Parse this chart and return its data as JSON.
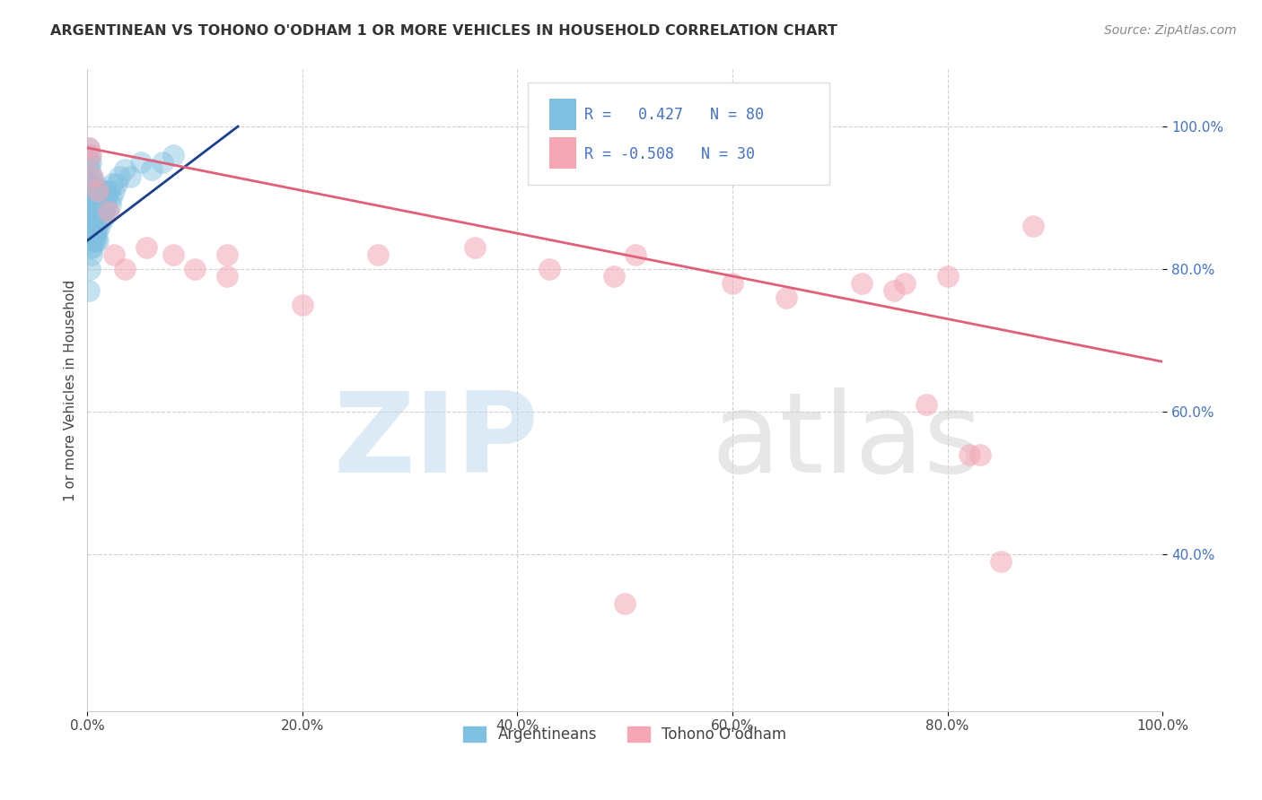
{
  "title": "ARGENTINEAN VS TOHONO O'ODHAM 1 OR MORE VEHICLES IN HOUSEHOLD CORRELATION CHART",
  "source": "Source: ZipAtlas.com",
  "ylabel": "1 or more Vehicles in Household",
  "xlim": [
    0.0,
    1.0
  ],
  "ylim": [
    0.18,
    1.08
  ],
  "yticks": [
    0.4,
    0.6,
    0.8,
    1.0
  ],
  "ytick_labels": [
    "40.0%",
    "60.0%",
    "80.0%",
    "100.0%"
  ],
  "xticks": [
    0.0,
    0.2,
    0.4,
    0.6,
    0.8,
    1.0
  ],
  "xtick_labels": [
    "0.0%",
    "20.0%",
    "40.0%",
    "60.0%",
    "80.0%",
    "100.0%"
  ],
  "blue_R": 0.427,
  "blue_N": 80,
  "pink_R": -0.508,
  "pink_N": 30,
  "blue_color": "#7fbfdf",
  "pink_color": "#f4a6b5",
  "blue_line_color": "#1a3f8c",
  "pink_line_color": "#e0607a",
  "legend_label_blue": "Argentineans",
  "legend_label_pink": "Tohono O'odham",
  "blue_x": [
    0.001,
    0.001,
    0.002,
    0.002,
    0.002,
    0.002,
    0.002,
    0.003,
    0.003,
    0.003,
    0.003,
    0.003,
    0.003,
    0.004,
    0.004,
    0.004,
    0.004,
    0.004,
    0.005,
    0.005,
    0.005,
    0.005,
    0.005,
    0.006,
    0.006,
    0.006,
    0.006,
    0.007,
    0.007,
    0.007,
    0.007,
    0.008,
    0.008,
    0.008,
    0.009,
    0.009,
    0.009,
    0.01,
    0.01,
    0.01,
    0.011,
    0.011,
    0.012,
    0.012,
    0.013,
    0.013,
    0.014,
    0.015,
    0.015,
    0.016,
    0.016,
    0.017,
    0.018,
    0.019,
    0.02,
    0.021,
    0.022,
    0.023,
    0.025,
    0.027,
    0.03,
    0.035,
    0.04,
    0.05,
    0.06,
    0.07,
    0.08,
    0.001,
    0.002,
    0.003,
    0.004,
    0.005,
    0.006,
    0.007,
    0.008,
    0.009,
    0.01,
    0.011,
    0.013,
    0.015
  ],
  "blue_y": [
    0.95,
    0.97,
    0.88,
    0.9,
    0.92,
    0.94,
    0.96,
    0.85,
    0.87,
    0.89,
    0.91,
    0.93,
    0.95,
    0.84,
    0.86,
    0.88,
    0.91,
    0.93,
    0.83,
    0.85,
    0.87,
    0.89,
    0.92,
    0.84,
    0.86,
    0.88,
    0.91,
    0.85,
    0.87,
    0.89,
    0.92,
    0.84,
    0.87,
    0.9,
    0.85,
    0.87,
    0.9,
    0.84,
    0.87,
    0.9,
    0.86,
    0.89,
    0.87,
    0.9,
    0.88,
    0.91,
    0.89,
    0.87,
    0.9,
    0.88,
    0.91,
    0.89,
    0.9,
    0.88,
    0.91,
    0.89,
    0.9,
    0.92,
    0.91,
    0.92,
    0.93,
    0.94,
    0.93,
    0.95,
    0.94,
    0.95,
    0.96,
    0.77,
    0.8,
    0.83,
    0.82,
    0.84,
    0.86,
    0.85,
    0.87,
    0.86,
    0.88,
    0.89,
    0.9,
    0.88
  ],
  "pink_x": [
    0.001,
    0.003,
    0.005,
    0.01,
    0.02,
    0.025,
    0.035,
    0.055,
    0.08,
    0.1,
    0.13,
    0.2,
    0.27,
    0.36,
    0.43,
    0.5,
    0.6,
    0.65,
    0.72,
    0.78,
    0.83,
    0.88,
    0.13,
    0.75,
    0.76,
    0.8,
    0.82,
    0.85,
    0.49,
    0.51
  ],
  "pink_y": [
    0.97,
    0.96,
    0.93,
    0.91,
    0.88,
    0.82,
    0.8,
    0.83,
    0.82,
    0.8,
    0.82,
    0.75,
    0.82,
    0.83,
    0.8,
    0.33,
    0.78,
    0.76,
    0.78,
    0.61,
    0.54,
    0.86,
    0.79,
    0.77,
    0.78,
    0.79,
    0.54,
    0.39,
    0.79,
    0.82
  ],
  "blue_trend_x": [
    0.0,
    0.14
  ],
  "blue_trend_y": [
    0.84,
    1.0
  ],
  "pink_trend_x": [
    0.0,
    1.0
  ],
  "pink_trend_y": [
    0.97,
    0.67
  ]
}
